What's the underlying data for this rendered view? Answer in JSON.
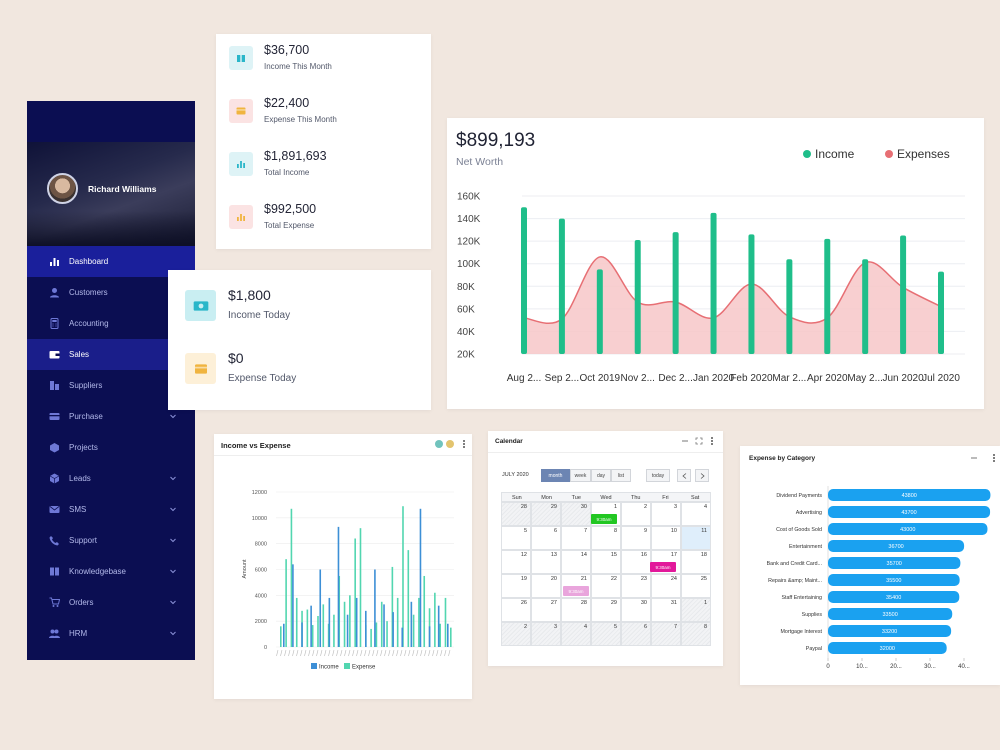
{
  "sidebar": {
    "user_name": "Richard Williams",
    "items": [
      {
        "label": "Dashboard",
        "icon": "bar-chart-icon",
        "state": "active",
        "chevron": false
      },
      {
        "label": "Customers",
        "icon": "user-icon",
        "state": "",
        "chevron": false
      },
      {
        "label": "Accounting",
        "icon": "calculator-icon",
        "state": "",
        "chevron": false
      },
      {
        "label": "Sales",
        "icon": "wallet-icon",
        "state": "selected",
        "chevron": false
      },
      {
        "label": "Suppliers",
        "icon": "building-icon",
        "state": "",
        "chevron": false
      },
      {
        "label": "Purchase",
        "icon": "card-icon",
        "state": "",
        "chevron": true
      },
      {
        "label": "Projects",
        "icon": "box-icon",
        "state": "",
        "chevron": false
      },
      {
        "label": "Leads",
        "icon": "cube-icon",
        "state": "",
        "chevron": true
      },
      {
        "label": "SMS",
        "icon": "mail-icon",
        "state": "",
        "chevron": true
      },
      {
        "label": "Support",
        "icon": "phone-icon",
        "state": "",
        "chevron": true
      },
      {
        "label": "Knowledgebase",
        "icon": "book-icon",
        "state": "",
        "chevron": true
      },
      {
        "label": "Orders",
        "icon": "cart-icon",
        "state": "",
        "chevron": true
      },
      {
        "label": "HRM",
        "icon": "people-icon",
        "state": "",
        "chevron": true
      }
    ]
  },
  "summary": [
    {
      "value": "$36,700",
      "label": "Income This Month",
      "icon": "gift-icon",
      "color": "#2ab6c9",
      "bg": "#def3f6"
    },
    {
      "value": "$22,400",
      "label": "Expense This Month",
      "icon": "credit-card-icon",
      "color": "#f0b43f",
      "bg": "#fbe3e3"
    },
    {
      "value": "$1,891,693",
      "label": "Total Income",
      "icon": "bar-chart-icon",
      "color": "#2ab6c9",
      "bg": "#def3f6"
    },
    {
      "value": "$992,500",
      "label": "Total Expense",
      "icon": "bar-chart-icon",
      "color": "#f0b43f",
      "bg": "#fbe3e3"
    }
  ],
  "today": [
    {
      "value": "$1,800",
      "label": "Income Today",
      "icon": "cash-icon",
      "color": "#2ab6c9",
      "bg": "#c9eef2"
    },
    {
      "value": "$0",
      "label": "Expense Today",
      "icon": "credit-card-icon",
      "color": "#f0b43f",
      "bg": "#fdf0d8"
    }
  ],
  "networth": {
    "value": "$899,193",
    "label": "Net Worth",
    "legend_income": "Income",
    "legend_expenses": "Expenses",
    "income_color": "#1fbe8a",
    "expense_color": "#e76f74"
  },
  "income_vs_expense": {
    "title": "Income vs Expense",
    "ylabel": "Amount",
    "legend": [
      "Income",
      "Expense"
    ],
    "income_color": "#3d8fd6",
    "expense_color": "#52d6b0"
  },
  "calendar": {
    "title": "Calendar",
    "month": "JULY 2020",
    "views": [
      "month",
      "week",
      "day",
      "list"
    ],
    "today": "today",
    "weekdays": [
      "Sun",
      "Mon",
      "Tue",
      "Wed",
      "Thu",
      "Fri",
      "Sat"
    ],
    "weeks": [
      [
        "28",
        "29",
        "30",
        "1",
        "2",
        "3",
        "4"
      ],
      [
        "5",
        "6",
        "7",
        "8",
        "9",
        "10",
        "11"
      ],
      [
        "12",
        "13",
        "14",
        "15",
        "16",
        "17",
        "18"
      ],
      [
        "19",
        "20",
        "21",
        "22",
        "23",
        "24",
        "25"
      ],
      [
        "26",
        "27",
        "28",
        "29",
        "30",
        "31",
        "1"
      ],
      [
        "2",
        "3",
        "4",
        "5",
        "6",
        "7",
        "8"
      ]
    ],
    "events": [
      {
        "text": "9:30am",
        "color": "#22c722"
      },
      {
        "text": "9:30am",
        "color": "#e2189a"
      },
      {
        "text": "9:30am",
        "color": "#e9a5dc"
      }
    ]
  },
  "expense_category": {
    "title": "Expense by Category",
    "bar_color": "#1aa1f0",
    "x_ticks": [
      "0",
      "10...",
      "20...",
      "30...",
      "40..."
    ]
  },
  "chart_data": [
    {
      "type": "bar",
      "title": "",
      "categories": [
        "Aug 2...",
        "Sep 2...",
        "Oct 2019",
        "Nov 2...",
        "Dec 2...",
        "Jan 2020",
        "Feb 2020",
        "Mar 2...",
        "Apr 2020",
        "May 2...",
        "Jun 2020",
        "Jul 2020"
      ],
      "series": [
        {
          "name": "Income",
          "type": "bar",
          "values": [
            150000,
            140000,
            95000,
            121000,
            128000,
            145000,
            126000,
            104000,
            122000,
            104000,
            125000,
            93000
          ]
        },
        {
          "name": "Expenses",
          "type": "area",
          "values": [
            52000,
            51000,
            106000,
            66000,
            66000,
            52000,
            82000,
            53000,
            52000,
            101000,
            79000,
            62000
          ]
        }
      ],
      "y_ticks": [
        "160K",
        "140K",
        "120K",
        "100K",
        "80K",
        "60K",
        "40K",
        "20K"
      ],
      "ylim": [
        20000,
        160000
      ]
    },
    {
      "type": "bar",
      "title": "Income vs Expense",
      "ylabel": "Amount",
      "y_ticks": [
        "12000",
        "10000",
        "8000",
        "6000",
        "4000",
        "2000",
        "0"
      ],
      "ylim": [
        0,
        12000
      ],
      "series": [
        {
          "name": "Income",
          "values": [
            1800,
            6400,
            1900,
            3200,
            6000,
            3800,
            9300,
            2500,
            3800,
            2800,
            6000,
            3300,
            2700,
            1500,
            3500,
            10700,
            1600,
            3200,
            1800
          ]
        },
        {
          "name": "Expense",
          "values": [
            1600,
            6800,
            10700,
            3800,
            2800,
            2900,
            1700,
            2400,
            3300,
            1800,
            2500,
            5500,
            3500,
            4000,
            8400,
            9200,
            1700,
            1400,
            1900,
            3500,
            2000,
            6200,
            3800,
            10900,
            7500,
            2500,
            3800,
            5500,
            3000,
            4200,
            1800,
            3800,
            1500
          ]
        }
      ]
    },
    {
      "type": "bar",
      "title": "Expense by Category",
      "categories": [
        "Dividend Payments",
        "Advertising",
        "Cost of Goods Sold",
        "Entertainment",
        "Bank and Credit Card...",
        "Repairs &amp; Maint...",
        "Staff Entertaining",
        "Supplies",
        "Mortgage Interest",
        "Paypal"
      ],
      "values": [
        43800,
        43700,
        43000,
        36700,
        35700,
        35500,
        35400,
        33500,
        33200,
        32000
      ]
    }
  ]
}
